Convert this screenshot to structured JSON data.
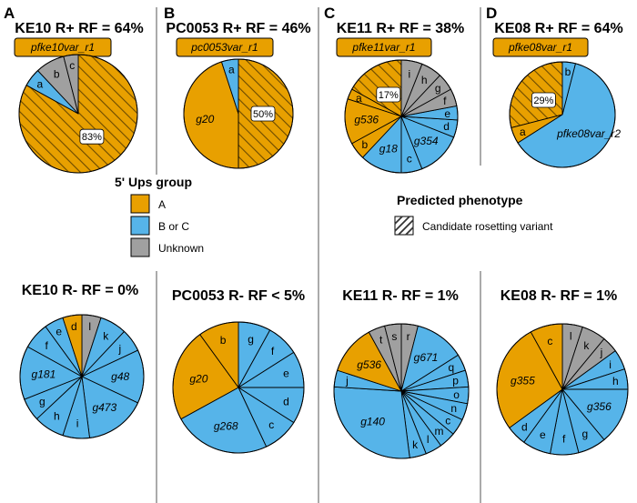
{
  "colors": {
    "A": "#E8A000",
    "BC": "#56B4E9",
    "Unknown": "#A0A0A0"
  },
  "legend_group": {
    "title": "5' Ups group",
    "items": [
      {
        "key": "A",
        "label": "A"
      },
      {
        "key": "BC",
        "label": "B or C"
      },
      {
        "key": "Unknown",
        "label": "Unknown"
      }
    ]
  },
  "legend_phenotype": {
    "title": "Predicted phenotype",
    "label": "Candidate rosetting variant"
  },
  "chart_data": [
    {
      "type": "pie",
      "panel": "A",
      "title": "KE10 R+ RF = 64%",
      "variant_label": "pfke10var_r1",
      "slices": [
        {
          "label": "",
          "value": 83,
          "group": "A",
          "hatched": true,
          "pct_label": "83%"
        },
        {
          "label": "a",
          "value": 5,
          "group": "BC"
        },
        {
          "label": "b",
          "value": 8,
          "group": "Unknown"
        },
        {
          "label": "c",
          "value": 4,
          "group": "Unknown"
        }
      ]
    },
    {
      "type": "pie",
      "panel": "B",
      "title": "PC0053 R+ RF = 46%",
      "variant_label": "pc0053var_r1",
      "slices": [
        {
          "label": "",
          "value": 50,
          "group": "A",
          "hatched": true,
          "pct_label": "50%"
        },
        {
          "label": "g20",
          "value": 45,
          "group": "A"
        },
        {
          "label": "a",
          "value": 5,
          "group": "BC"
        }
      ]
    },
    {
      "type": "pie",
      "panel": "C",
      "title": "KE11 R+ RF = 38%",
      "variant_label": "pfke11var_r1",
      "slices": [
        {
          "label": "",
          "value": 17,
          "group": "A",
          "hatched": true,
          "pct_label": "17%"
        },
        {
          "label": "a",
          "value": 3,
          "group": "A"
        },
        {
          "label": "g536",
          "value": 13,
          "group": "A"
        },
        {
          "label": "b",
          "value": 5,
          "group": "A"
        },
        {
          "label": "g18",
          "value": 12,
          "group": "BC"
        },
        {
          "label": "c",
          "value": 6,
          "group": "BC"
        },
        {
          "label": "g354",
          "value": 13,
          "group": "BC"
        },
        {
          "label": "d",
          "value": 5,
          "group": "BC"
        },
        {
          "label": "e",
          "value": 4,
          "group": "BC"
        },
        {
          "label": "f",
          "value": 5,
          "group": "Unknown"
        },
        {
          "label": "g",
          "value": 5,
          "group": "Unknown"
        },
        {
          "label": "h",
          "value": 6,
          "group": "Unknown"
        },
        {
          "label": "i",
          "value": 6,
          "group": "Unknown"
        }
      ]
    },
    {
      "type": "pie",
      "panel": "D",
      "title": "KE08 R+ RF = 64%",
      "variant_label": "pfke08var_r1",
      "slices": [
        {
          "label": "",
          "value": 29,
          "group": "A",
          "hatched": true,
          "pct_label": "29%"
        },
        {
          "label": "a",
          "value": 5,
          "group": "A"
        },
        {
          "label": "pfke08var_r2",
          "value": 62,
          "group": "BC"
        },
        {
          "label": "b",
          "value": 4,
          "group": "BC"
        }
      ]
    },
    {
      "type": "pie",
      "panel": "A",
      "title": "KE10 R- RF = 0%",
      "slices": [
        {
          "label": "l",
          "value": 5,
          "group": "Unknown"
        },
        {
          "label": "k",
          "value": 7,
          "group": "BC"
        },
        {
          "label": "j",
          "value": 6,
          "group": "BC"
        },
        {
          "label": "g48",
          "value": 14,
          "group": "BC"
        },
        {
          "label": "g473",
          "value": 16,
          "group": "BC"
        },
        {
          "label": "i",
          "value": 7,
          "group": "BC"
        },
        {
          "label": "h",
          "value": 8,
          "group": "BC"
        },
        {
          "label": "g",
          "value": 6,
          "group": "BC"
        },
        {
          "label": "g181",
          "value": 14,
          "group": "BC"
        },
        {
          "label": "f",
          "value": 7,
          "group": "BC"
        },
        {
          "label": "e",
          "value": 5,
          "group": "BC"
        },
        {
          "label": "d",
          "value": 5,
          "group": "A"
        }
      ]
    },
    {
      "type": "pie",
      "panel": "B",
      "title": "PC0053 R- RF < 5%",
      "slices": [
        {
          "label": "g",
          "value": 8,
          "group": "BC"
        },
        {
          "label": "f",
          "value": 8,
          "group": "BC"
        },
        {
          "label": "e",
          "value": 9,
          "group": "BC"
        },
        {
          "label": "d",
          "value": 9,
          "group": "BC"
        },
        {
          "label": "c",
          "value": 9,
          "group": "BC"
        },
        {
          "label": "g268",
          "value": 24,
          "group": "BC"
        },
        {
          "label": "g20",
          "value": 23,
          "group": "A"
        },
        {
          "label": "b",
          "value": 10,
          "group": "A"
        }
      ]
    },
    {
      "type": "pie",
      "panel": "C",
      "title": "KE11 R- RF = 1%",
      "slices": [
        {
          "label": "r",
          "value": 4,
          "group": "Unknown"
        },
        {
          "label": "g671",
          "value": 12,
          "group": "BC"
        },
        {
          "label": "q",
          "value": 4,
          "group": "BC"
        },
        {
          "label": "p",
          "value": 4,
          "group": "BC"
        },
        {
          "label": "o",
          "value": 4,
          "group": "BC"
        },
        {
          "label": "n",
          "value": 4,
          "group": "BC"
        },
        {
          "label": "c",
          "value": 4,
          "group": "BC"
        },
        {
          "label": "m",
          "value": 4,
          "group": "BC"
        },
        {
          "label": "l",
          "value": 4,
          "group": "BC"
        },
        {
          "label": "k",
          "value": 4,
          "group": "BC"
        },
        {
          "label": "g140",
          "value": 28,
          "group": "BC"
        },
        {
          "label": "j",
          "value": 4,
          "group": "BC"
        },
        {
          "label": "g536",
          "value": 12,
          "group": "A"
        },
        {
          "label": "t",
          "value": 4,
          "group": "Unknown"
        },
        {
          "label": "s",
          "value": 4,
          "group": "Unknown"
        }
      ]
    },
    {
      "type": "pie",
      "panel": "D",
      "title": "KE08 R- RF = 1%",
      "slices": [
        {
          "label": "l",
          "value": 5,
          "group": "Unknown"
        },
        {
          "label": "k",
          "value": 6,
          "group": "Unknown"
        },
        {
          "label": "j",
          "value": 4,
          "group": "Unknown"
        },
        {
          "label": "i",
          "value": 5,
          "group": "BC"
        },
        {
          "label": "h",
          "value": 5,
          "group": "BC"
        },
        {
          "label": "g356",
          "value": 14,
          "group": "BC"
        },
        {
          "label": "g",
          "value": 7,
          "group": "BC"
        },
        {
          "label": "f",
          "value": 7,
          "group": "BC"
        },
        {
          "label": "e",
          "value": 7,
          "group": "BC"
        },
        {
          "label": "d",
          "value": 5,
          "group": "BC"
        },
        {
          "label": "g355",
          "value": 27,
          "group": "A"
        },
        {
          "label": "c",
          "value": 8,
          "group": "A"
        }
      ]
    }
  ]
}
